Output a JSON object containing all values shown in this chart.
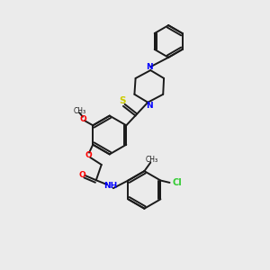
{
  "background_color": "#ebebeb",
  "bond_color": "#1a1a1a",
  "nitrogen_color": "#0000ff",
  "oxygen_color": "#ff0000",
  "sulfur_color": "#cccc00",
  "chlorine_color": "#33cc33",
  "carbon_color": "#1a1a1a",
  "figsize": [
    3.0,
    3.0
  ],
  "dpi": 100,
  "xlim": [
    0,
    10
  ],
  "ylim": [
    0,
    10
  ]
}
